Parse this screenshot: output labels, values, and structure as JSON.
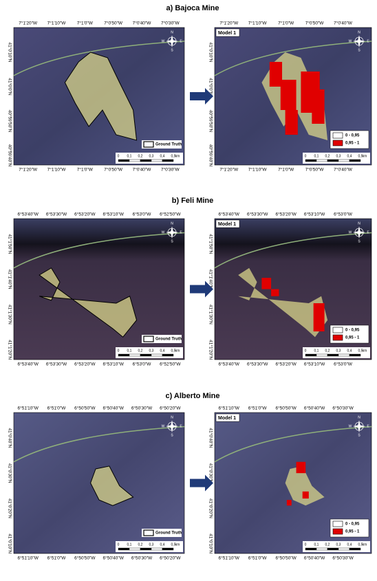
{
  "panels": [
    {
      "title": "a) Bajoca Mine",
      "left": {
        "x_labels": [
          "7°1'20\"W",
          "7°1'10\"W",
          "7°1'0\"W",
          "7°0'50\"W",
          "7°0'40\"W",
          "7°0'30\"W"
        ],
        "y_labels": [
          "41°0'10\"N",
          "41°0'0\"N",
          "40°59'50\"N",
          "40°59'40\"N"
        ],
        "legend": "Ground Truth"
      },
      "right": {
        "model": "Model 1",
        "x_labels": [
          "7°1'20\"W",
          "7°1'10\"W",
          "7°1'0\"W",
          "7°0'50\"W",
          "7°0'40\"W"
        ],
        "y_labels": [
          "41°0'10\"N",
          "41°0'0\"N",
          "40°59'50\"N",
          "40°59'40\"N"
        ],
        "legend": [
          "0 - 0,95",
          "0,95 - 1"
        ]
      }
    },
    {
      "title": "b) Feli Mine",
      "left": {
        "x_labels": [
          "6°53'40\"W",
          "6°53'30\"W",
          "6°53'20\"W",
          "6°53'10\"W",
          "6°53'0\"W",
          "6°52'50\"W"
        ],
        "y_labels": [
          "41°1'50\"N",
          "41°1'40\"N",
          "41°1'30\"N",
          "41°1'20\"N"
        ],
        "legend": "Ground Truth"
      },
      "right": {
        "model": "Model 1",
        "x_labels": [
          "6°53'40\"W",
          "6°53'30\"W",
          "6°53'20\"W",
          "6°53'10\"W",
          "6°53'0\"W"
        ],
        "y_labels": [
          "41°1'50\"N",
          "41°1'40\"N",
          "41°1'30\"N",
          "41°1'20\"N"
        ],
        "legend": [
          "0 - 0,95",
          "0,95 - 1"
        ]
      }
    },
    {
      "title": "c) Alberto Mine",
      "left": {
        "x_labels": [
          "6°51'10\"W",
          "6°51'0\"W",
          "6°50'50\"W",
          "6°50'40\"W",
          "6°50'30\"W",
          "6°50'20\"W"
        ],
        "y_labels": [
          "41°0'40\"N",
          "41°0'30\"N",
          "41°0'20\"N",
          "41°0'10\"N"
        ],
        "legend": "Ground Truth"
      },
      "right": {
        "model": "Model 1",
        "x_labels": [
          "6°51'10\"W",
          "6°51'0\"W",
          "6°50'50\"W",
          "6°50'40\"W",
          "6°50'30\"W"
        ],
        "y_labels": [
          "41°0'40\"N",
          "41°0'30\"N",
          "41°0'20\"N",
          "41°0'10\"N"
        ],
        "legend": [
          "0 - 0,95",
          "0,95 - 1"
        ]
      }
    }
  ],
  "scale_bar": [
    "0",
    "0,1",
    "0,2",
    "0,3",
    "0,4",
    "0,5",
    "km"
  ],
  "compass": [
    "N",
    "E",
    "S",
    "W"
  ]
}
